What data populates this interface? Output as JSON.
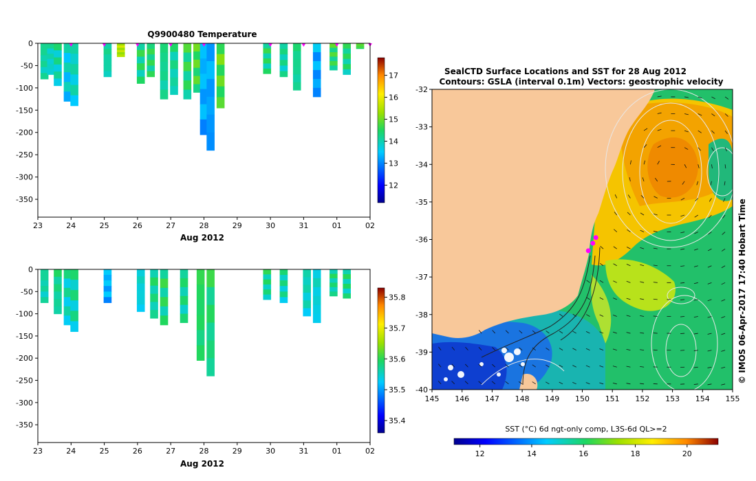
{
  "chart_data": [
    {
      "type": "heatmap",
      "title": "Q9900480  Temperature",
      "xlabel": "Aug 2012",
      "x_tick_labels": [
        "23",
        "24",
        "25",
        "26",
        "27",
        "28",
        "29",
        "30",
        "31",
        "01",
        "02"
      ],
      "x_range_days": [
        23,
        33
      ],
      "y_tick_labels": [
        "0",
        "-50",
        "-100",
        "-150",
        "-200",
        "-250",
        "-300",
        "-350"
      ],
      "ylim": [
        -390,
        0
      ],
      "colorbar_ticks": [
        "12",
        "13",
        "14",
        "15",
        "16",
        "17"
      ],
      "colorbar_range": [
        11.2,
        17.8
      ],
      "surface_markers_day": [
        24.0,
        25.0,
        26.0,
        27.0,
        28.0,
        30.0,
        31.0,
        32.0,
        33.0
      ],
      "profiles": [
        {
          "day": 23.2,
          "depth": 80,
          "value": 14.2
        },
        {
          "day": 23.4,
          "depth": 70,
          "value": 14.0
        },
        {
          "day": 23.6,
          "depth": 95,
          "value": 14.1
        },
        {
          "day": 23.9,
          "depth": 130,
          "value": 13.8
        },
        {
          "day": 24.1,
          "depth": 140,
          "value": 14.0
        },
        {
          "day": 25.1,
          "depth": 75,
          "value": 14.2
        },
        {
          "day": 25.5,
          "depth": 30,
          "value": 15.6
        },
        {
          "day": 26.1,
          "depth": 90,
          "value": 14.4
        },
        {
          "day": 26.4,
          "depth": 75,
          "value": 14.5
        },
        {
          "day": 26.8,
          "depth": 125,
          "value": 14.3
        },
        {
          "day": 27.1,
          "depth": 115,
          "value": 14.2
        },
        {
          "day": 27.5,
          "depth": 125,
          "value": 14.5
        },
        {
          "day": 27.8,
          "depth": 110,
          "value": 14.8
        },
        {
          "day": 28.0,
          "depth": 205,
          "value": 13.4
        },
        {
          "day": 28.2,
          "depth": 240,
          "value": 13.3
        },
        {
          "day": 28.5,
          "depth": 145,
          "value": 14.9
        },
        {
          "day": 29.9,
          "depth": 68,
          "value": 14.4
        },
        {
          "day": 30.4,
          "depth": 75,
          "value": 14.2
        },
        {
          "day": 30.8,
          "depth": 105,
          "value": 14.3
        },
        {
          "day": 31.4,
          "depth": 120,
          "value": 13.3
        },
        {
          "day": 31.9,
          "depth": 60,
          "value": 14.6
        },
        {
          "day": 32.3,
          "depth": 70,
          "value": 14.4
        },
        {
          "day": 32.7,
          "depth": 12,
          "value": 14.9
        }
      ]
    },
    {
      "type": "heatmap",
      "title": "",
      "xlabel": "Aug 2012",
      "x_tick_labels": [
        "23",
        "24",
        "25",
        "26",
        "27",
        "28",
        "29",
        "30",
        "31",
        "01",
        "02"
      ],
      "x_range_days": [
        23,
        33
      ],
      "y_tick_labels": [
        "0",
        "-50",
        "-100",
        "-150",
        "-200",
        "-250",
        "-300",
        "-350"
      ],
      "ylim": [
        -390,
        0
      ],
      "colorbar_ticks": [
        "35.4",
        "35.5",
        "35.6",
        "35.7",
        "35.8"
      ],
      "colorbar_range": [
        35.36,
        35.83
      ],
      "profiles": [
        {
          "day": 23.2,
          "depth": 75,
          "value": 35.57
        },
        {
          "day": 23.6,
          "depth": 100,
          "value": 35.58
        },
        {
          "day": 23.9,
          "depth": 125,
          "value": 35.56
        },
        {
          "day": 24.1,
          "depth": 140,
          "value": 35.57
        },
        {
          "day": 25.1,
          "depth": 75,
          "value": 35.52
        },
        {
          "day": 26.1,
          "depth": 95,
          "value": 35.55
        },
        {
          "day": 26.5,
          "depth": 110,
          "value": 35.58
        },
        {
          "day": 26.8,
          "depth": 125,
          "value": 35.59
        },
        {
          "day": 27.4,
          "depth": 120,
          "value": 35.58
        },
        {
          "day": 27.9,
          "depth": 205,
          "value": 35.6
        },
        {
          "day": 28.2,
          "depth": 240,
          "value": 35.59
        },
        {
          "day": 29.9,
          "depth": 68,
          "value": 35.58
        },
        {
          "day": 30.4,
          "depth": 75,
          "value": 35.57
        },
        {
          "day": 31.1,
          "depth": 105,
          "value": 35.56
        },
        {
          "day": 31.4,
          "depth": 120,
          "value": 35.55
        },
        {
          "day": 31.9,
          "depth": 60,
          "value": 35.58
        },
        {
          "day": 32.3,
          "depth": 65,
          "value": 35.58
        }
      ]
    },
    {
      "type": "heatmap",
      "title": "SealCTD Surface Locations and SST for 28 Aug 2012",
      "subtitle": "Contours: GSLA (interval 0.1m) Vectors: geostrophic velocity",
      "x_tick_labels": [
        "145",
        "146",
        "147",
        "148",
        "149",
        "150",
        "151",
        "152",
        "153",
        "154",
        "155"
      ],
      "xlim": [
        145,
        155
      ],
      "y_tick_labels": [
        "-32",
        "-33",
        "-34",
        "-35",
        "-36",
        "-37",
        "-38",
        "-39",
        "-40"
      ],
      "ylim": [
        -40,
        -32
      ],
      "side_label": "© IMOS 06-Apr-2017 17:40 Hobart Time",
      "colorbar_label": "SST (°C) 6d ngt-only comp, L3S-6d QL>=2",
      "colorbar_ticks": [
        "12",
        "14",
        "16",
        "18",
        "20"
      ],
      "colorbar_range": [
        11,
        21.2
      ],
      "seal_track": [
        [
          150.2,
          -36.3
        ],
        [
          150.35,
          -36.1
        ],
        [
          150.45,
          -35.95
        ]
      ]
    }
  ],
  "colors": {
    "land": "#f8c89a",
    "marker": "#ff00ff"
  }
}
